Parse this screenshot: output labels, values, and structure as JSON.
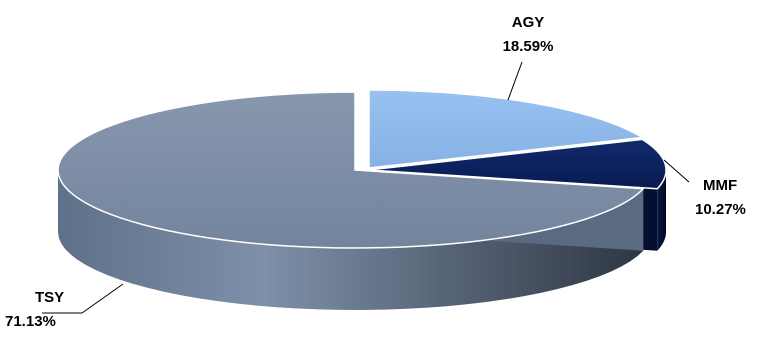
{
  "chart_data": {
    "type": "pie",
    "style": "3d-exploded",
    "slices": [
      {
        "label": "AGY",
        "value": 18.59,
        "value_text": "18.59%",
        "color": "#8DB7EA"
      },
      {
        "label": "MMF",
        "value": 10.27,
        "value_text": "10.27%",
        "color": "#0B1F5C"
      },
      {
        "label": "TSY",
        "value": 71.13,
        "value_text": "71.13%",
        "color": "#7B8CA5"
      }
    ],
    "legend": "none",
    "data_labels": "outside-with-leader-lines"
  }
}
